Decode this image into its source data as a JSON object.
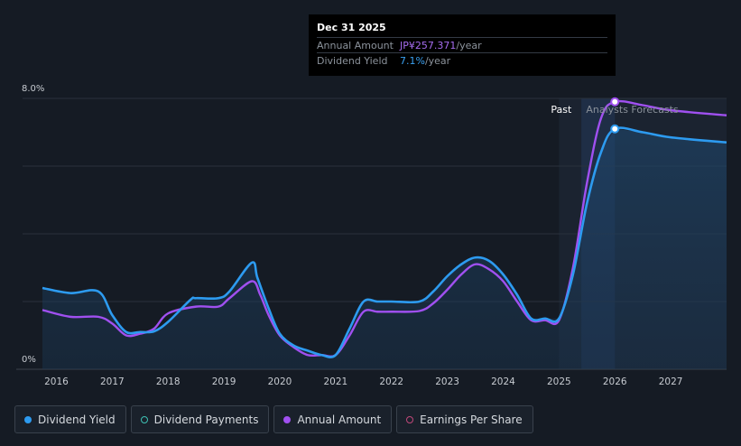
{
  "tooltip": {
    "date": "Dec 31 2025",
    "amount_label": "Annual Amount",
    "amount_value": "JP¥257.371",
    "amount_unit": "/year",
    "yield_label": "Dividend Yield",
    "yield_value": "7.1%",
    "yield_unit": "/year"
  },
  "legend": [
    {
      "label": "Dividend Yield",
      "color": "#2d9bf0",
      "filled": true
    },
    {
      "label": "Dividend Payments",
      "color": "#3ec1b4",
      "filled": false
    },
    {
      "label": "Annual Amount",
      "color": "#a050f0",
      "filled": true
    },
    {
      "label": "Earnings Per Share",
      "color": "#c0487a",
      "filled": false
    }
  ],
  "chart_data": {
    "type": "line",
    "y_tick_labels": [
      "8.0%",
      "0%"
    ],
    "ylim": [
      0,
      8
    ],
    "xlim": [
      2015.75,
      2028.0
    ],
    "x_tick_labels": [
      "2016",
      "2017",
      "2018",
      "2019",
      "2020",
      "2021",
      "2022",
      "2023",
      "2024",
      "2025",
      "2026",
      "2027"
    ],
    "x_ticks": [
      2016,
      2017,
      2018,
      2019,
      2020,
      2021,
      2022,
      2023,
      2024,
      2025,
      2026,
      2027
    ],
    "past_label": "Past",
    "forecast_label": "Analysts Forecasts",
    "forecast_start": 2025.0,
    "highlight_x": 2026.0,
    "grid": true,
    "colors": {
      "yield": "#2d9bf0",
      "amount": "#a050f0"
    },
    "series": [
      {
        "name": "Dividend Yield",
        "key": "yield",
        "points": [
          [
            2015.75,
            2.4
          ],
          [
            2016.25,
            2.25
          ],
          [
            2016.75,
            2.3
          ],
          [
            2017.0,
            1.6
          ],
          [
            2017.25,
            1.1
          ],
          [
            2017.5,
            1.1
          ],
          [
            2017.75,
            1.12
          ],
          [
            2018.0,
            1.4
          ],
          [
            2018.4,
            2.05
          ],
          [
            2018.5,
            2.1
          ],
          [
            2018.9,
            2.1
          ],
          [
            2019.1,
            2.3
          ],
          [
            2019.5,
            3.15
          ],
          [
            2019.6,
            2.7
          ],
          [
            2019.8,
            1.8
          ],
          [
            2020.0,
            1.05
          ],
          [
            2020.25,
            0.7
          ],
          [
            2020.5,
            0.55
          ],
          [
            2020.75,
            0.42
          ],
          [
            2021.0,
            0.42
          ],
          [
            2021.25,
            1.2
          ],
          [
            2021.5,
            2.0
          ],
          [
            2021.75,
            2.0
          ],
          [
            2022.0,
            2.0
          ],
          [
            2022.5,
            2.0
          ],
          [
            2022.75,
            2.3
          ],
          [
            2023.0,
            2.75
          ],
          [
            2023.25,
            3.1
          ],
          [
            2023.5,
            3.3
          ],
          [
            2023.75,
            3.2
          ],
          [
            2024.0,
            2.8
          ],
          [
            2024.25,
            2.2
          ],
          [
            2024.5,
            1.5
          ],
          [
            2024.75,
            1.5
          ],
          [
            2025.0,
            1.5
          ],
          [
            2025.25,
            2.8
          ],
          [
            2025.5,
            4.9
          ],
          [
            2025.75,
            6.4
          ],
          [
            2026.0,
            7.1
          ],
          [
            2026.5,
            7.0
          ],
          [
            2027.0,
            6.85
          ],
          [
            2028.0,
            6.7
          ]
        ]
      },
      {
        "name": "Annual Amount",
        "key": "amount",
        "points": [
          [
            2015.75,
            1.75
          ],
          [
            2016.25,
            1.55
          ],
          [
            2016.75,
            1.55
          ],
          [
            2017.0,
            1.35
          ],
          [
            2017.25,
            1.0
          ],
          [
            2017.5,
            1.05
          ],
          [
            2017.75,
            1.2
          ],
          [
            2018.0,
            1.65
          ],
          [
            2018.5,
            1.85
          ],
          [
            2018.9,
            1.85
          ],
          [
            2019.1,
            2.1
          ],
          [
            2019.5,
            2.6
          ],
          [
            2019.65,
            2.2
          ],
          [
            2019.8,
            1.6
          ],
          [
            2020.0,
            1.0
          ],
          [
            2020.25,
            0.65
          ],
          [
            2020.5,
            0.42
          ],
          [
            2020.75,
            0.42
          ],
          [
            2021.0,
            0.42
          ],
          [
            2021.25,
            1.0
          ],
          [
            2021.5,
            1.7
          ],
          [
            2021.75,
            1.7
          ],
          [
            2022.0,
            1.7
          ],
          [
            2022.5,
            1.72
          ],
          [
            2022.75,
            1.95
          ],
          [
            2023.0,
            2.35
          ],
          [
            2023.25,
            2.8
          ],
          [
            2023.5,
            3.1
          ],
          [
            2023.75,
            2.95
          ],
          [
            2024.0,
            2.6
          ],
          [
            2024.25,
            2.0
          ],
          [
            2024.5,
            1.45
          ],
          [
            2024.75,
            1.45
          ],
          [
            2025.0,
            1.45
          ],
          [
            2025.25,
            3.0
          ],
          [
            2025.5,
            5.5
          ],
          [
            2025.75,
            7.4
          ],
          [
            2026.0,
            7.9
          ],
          [
            2026.5,
            7.8
          ],
          [
            2027.0,
            7.65
          ],
          [
            2028.0,
            7.5
          ]
        ]
      }
    ]
  }
}
